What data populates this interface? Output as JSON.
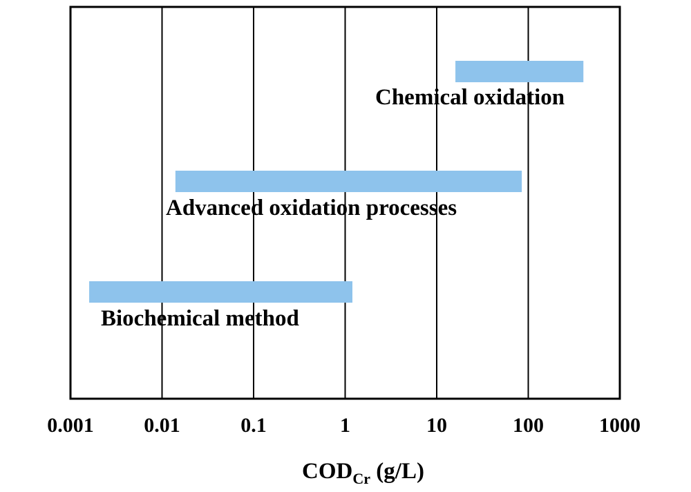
{
  "chart_data": {
    "type": "range-bar",
    "x_scale": "log",
    "xlim": [
      0.001,
      1000
    ],
    "x_ticks": [
      {
        "value": 0.001,
        "label": "0.001"
      },
      {
        "value": 0.01,
        "label": "0.01"
      },
      {
        "value": 0.1,
        "label": "0.1"
      },
      {
        "value": 1,
        "label": "1"
      },
      {
        "value": 10,
        "label": "10"
      },
      {
        "value": 100,
        "label": "100"
      },
      {
        "value": 1000,
        "label": "1000"
      }
    ],
    "xlabel": {
      "main": "COD",
      "subscript": "Cr",
      "unit": " (g/L)"
    },
    "grid": "vertical",
    "bar_color": "#8EC3EC",
    "series": [
      {
        "name": "Chemical oxidation",
        "min": 16,
        "max": 400
      },
      {
        "name": "Advanced oxidation processes",
        "min": 0.014,
        "max": 85
      },
      {
        "name": "Biochemical method",
        "min": 0.0016,
        "max": 1.2
      }
    ]
  }
}
